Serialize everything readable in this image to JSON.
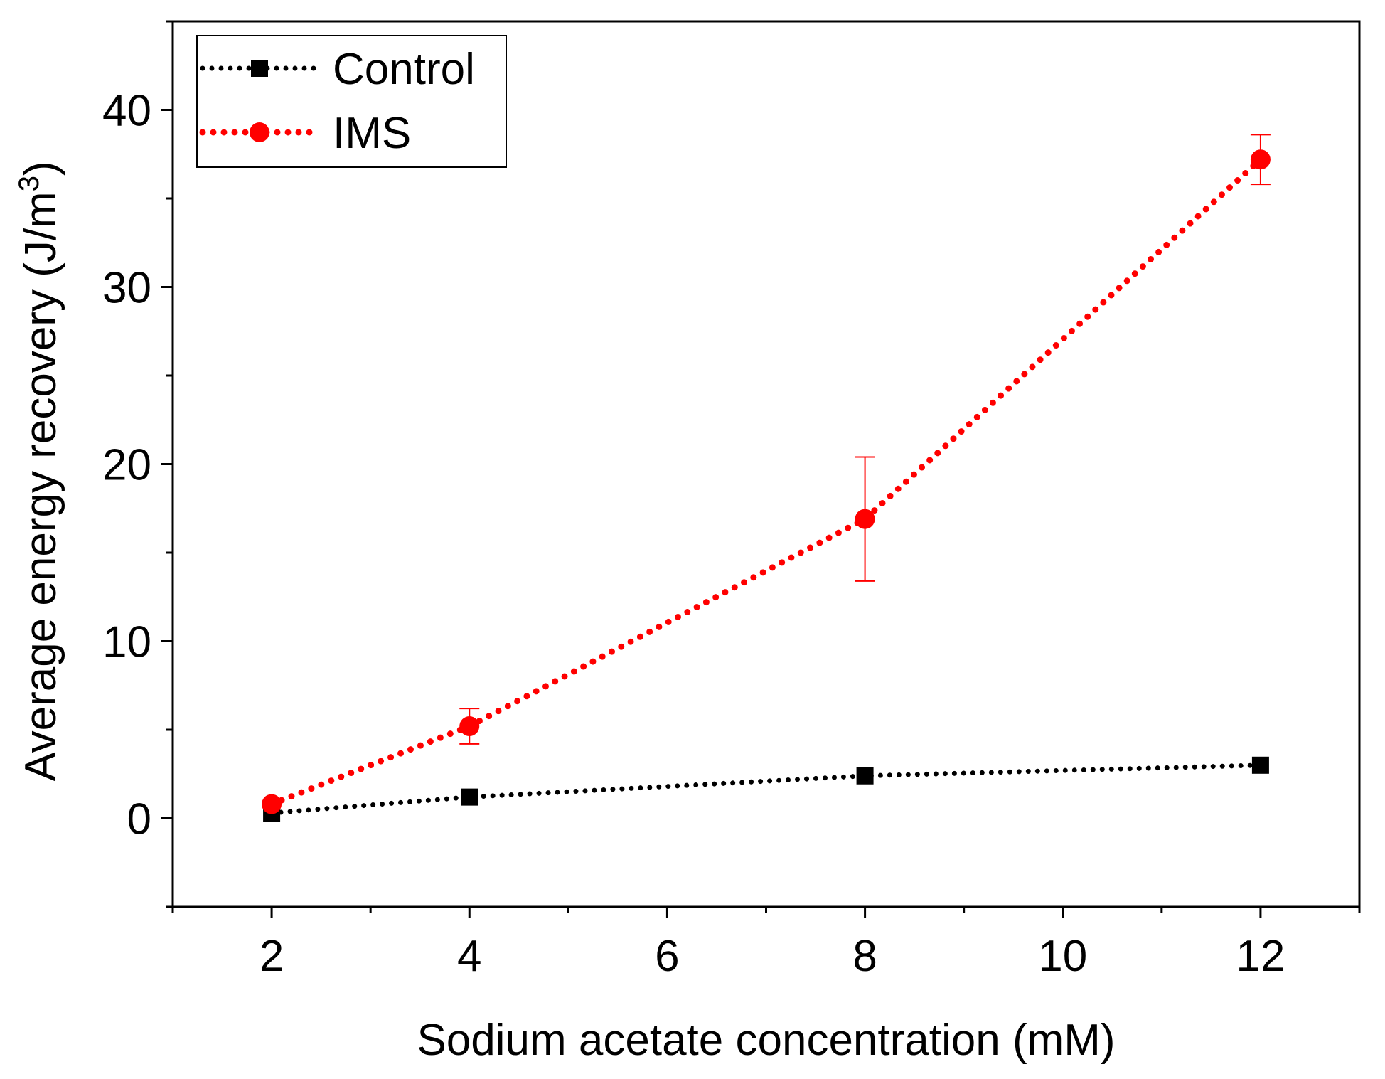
{
  "chart_data": {
    "type": "line",
    "title": "",
    "xlabel": "Sodium acetate concentration (mM)",
    "ylabel_main": "Average energy recovery (J/m",
    "ylabel_sup": "3",
    "ylabel_close": ")",
    "xlim": [
      1,
      13
    ],
    "ylim": [
      -5,
      45
    ],
    "xticks": [
      2,
      4,
      6,
      8,
      10,
      12
    ],
    "xminor": [
      1,
      3,
      5,
      7,
      9,
      11,
      13
    ],
    "yticks": [
      0,
      10,
      20,
      30,
      40
    ],
    "yminor": [
      -5,
      5,
      15,
      25,
      35,
      45
    ],
    "grid": false,
    "legend_position": "top-left",
    "series": [
      {
        "name": "Control",
        "color": "#000000",
        "marker": "square",
        "x": [
          2,
          4,
          8,
          12
        ],
        "y": [
          0.3,
          1.2,
          2.4,
          3.0
        ],
        "err": [
          0,
          0,
          0,
          0
        ]
      },
      {
        "name": "IMS",
        "color": "#ff0000",
        "marker": "circle",
        "x": [
          2,
          4,
          8,
          12
        ],
        "y": [
          0.8,
          5.2,
          16.9,
          37.2
        ],
        "err": [
          0,
          1.0,
          3.5,
          1.4
        ]
      }
    ]
  }
}
